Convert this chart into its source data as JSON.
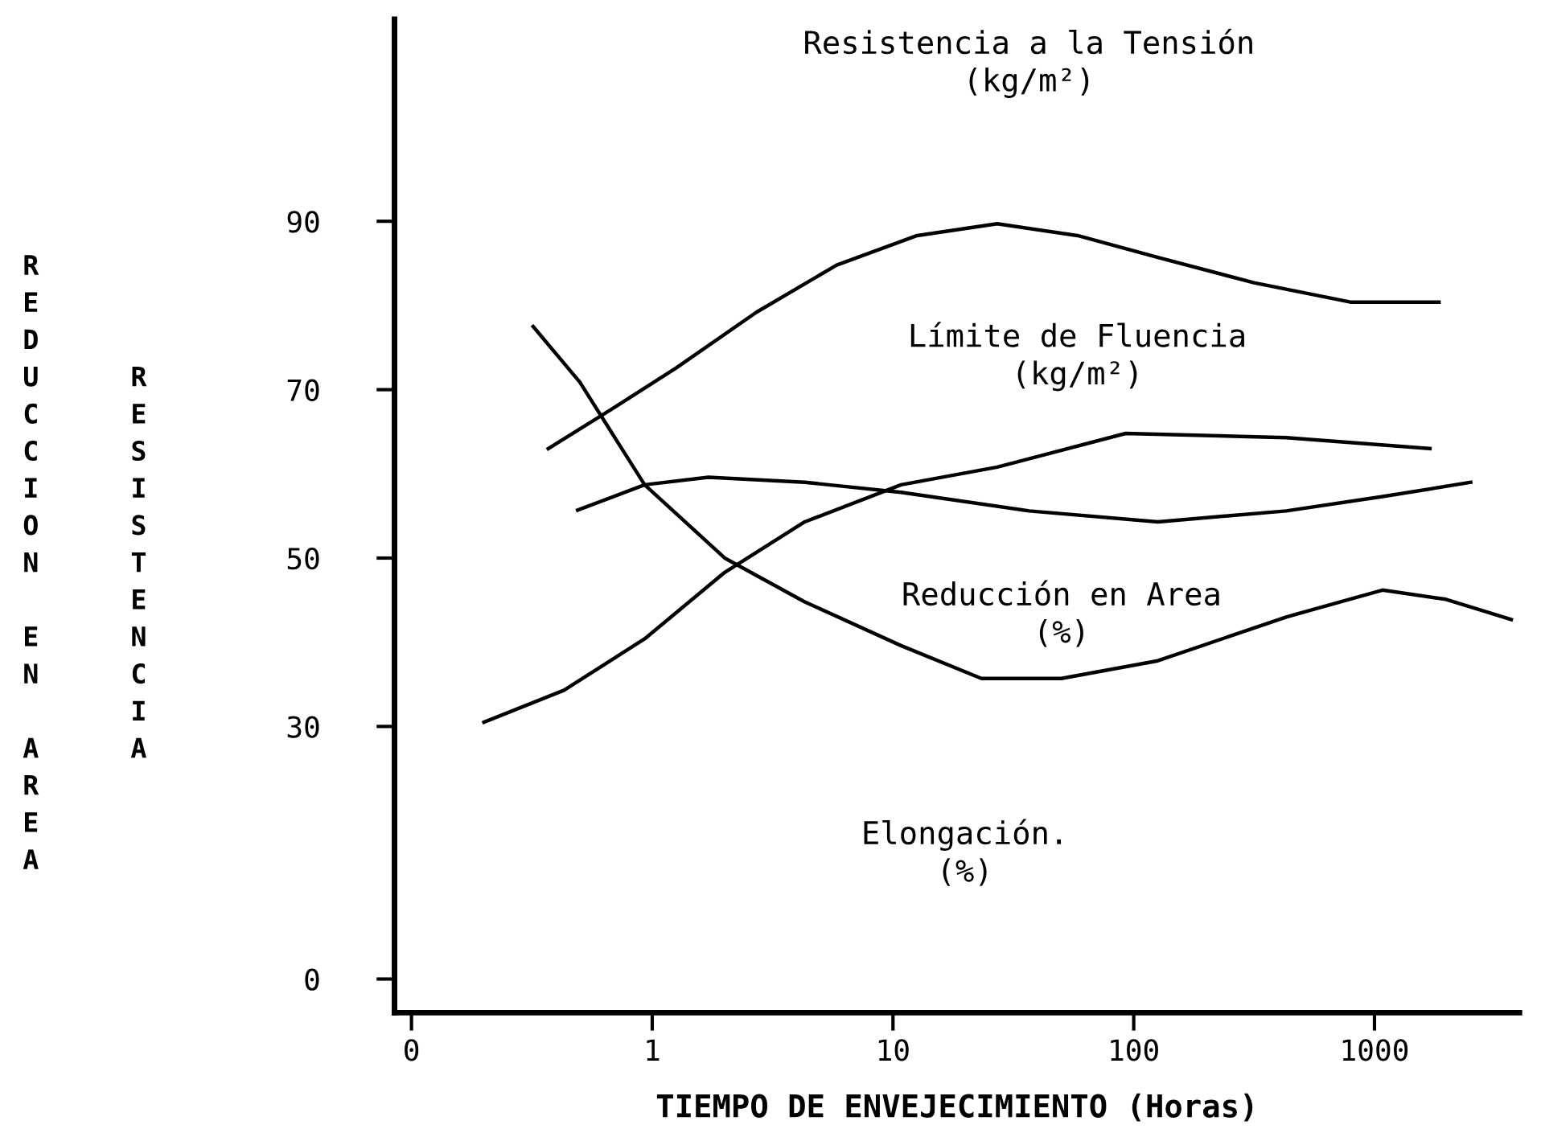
{
  "chart_data": {
    "type": "line",
    "xlabel": "TIEMPO DE ENVEJECIMIENTO (Horas)",
    "ylabel": "REDUCCION EN AREA",
    "log": "x",
    "xlim": [
      0.085,
      4000
    ],
    "xticks": [
      {
        "value": 0.1,
        "label": "0"
      },
      1,
      10,
      100,
      1000
    ],
    "ylim": [
      -4,
      114
    ],
    "yticks": [
      0,
      30,
      50,
      70,
      90
    ],
    "grid": false,
    "legend": false,
    "marker": "none",
    "line_style": "solid",
    "series": [
      {
        "color": "#000000",
        "x": [
          0.37,
          0.68,
          1.26,
          2.71,
          5.84,
          12.6,
          27.1,
          58.4,
          126,
          316,
          794,
          1853
        ],
        "values": [
          63.0,
          67.7,
          72.6,
          79.2,
          84.8,
          88.3,
          89.7,
          88.3,
          85.7,
          82.7,
          80.4,
          80.4
        ]
      },
      {
        "color": "#000000",
        "x": [
          0.2,
          0.43,
          0.93,
          2,
          4.3,
          10.8,
          27.1,
          92.6,
          430,
          1700
        ],
        "values": [
          30.5,
          34.3,
          40.4,
          48.3,
          54.3,
          58.7,
          60.8,
          64.8,
          64.3,
          63.0
        ]
      },
      {
        "color": "#000000",
        "x": [
          0.49,
          0.93,
          1.71,
          4.3,
          10.8,
          36.8,
          126,
          430,
          1080,
          2510
        ],
        "values": [
          55.7,
          58.7,
          59.6,
          59.0,
          57.8,
          55.6,
          54.3,
          55.6,
          57.3,
          59.0
        ]
      },
      {
        "color": "#000000",
        "x": [
          0.32,
          0.5,
          0.93,
          2,
          4.3,
          10.8,
          23.3,
          50,
          126,
          430,
          1080,
          1980,
          3700
        ],
        "values": [
          77.5,
          70.9,
          58.7,
          50.0,
          44.8,
          39.6,
          35.7,
          35.7,
          37.8,
          43.0,
          46.2,
          45.1,
          42.7
        ]
      }
    ],
    "annotations": [
      "RESISTENCIA",
      "Resistencia a la Tensión\n(kg/m²)",
      "Límite de Fluencia\n(kg/m²)",
      "Reducción en Area\n(%)",
      "Elongación.\n(%)"
    ]
  }
}
